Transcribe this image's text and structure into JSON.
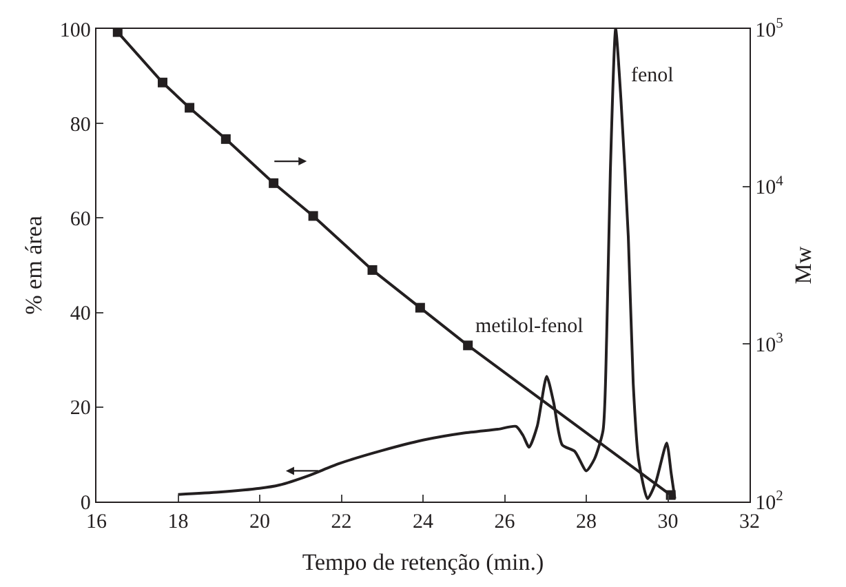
{
  "chart_data": {
    "type": "line",
    "xlabel": "Tempo de retenção (min.)",
    "ylabel": "% em área",
    "y2label": "Mw",
    "xlim": [
      16,
      32
    ],
    "xticks": [
      16,
      18,
      20,
      22,
      24,
      26,
      28,
      30,
      32
    ],
    "ylim": [
      0,
      100
    ],
    "yticks": [
      0,
      20,
      40,
      60,
      80,
      100
    ],
    "y2lim": [
      100,
      100000
    ],
    "y2ticks": [
      {
        "value": 100,
        "label": "10$^{2}$"
      },
      {
        "value": 1000,
        "label": "10$^{3}$"
      },
      {
        "value": 10000,
        "label": "10$^{4}$"
      },
      {
        "value": 100000,
        "label": "10$^{5}$"
      }
    ],
    "log": "y2",
    "series": [
      {
        "color": "#231f20",
        "marker": "none",
        "line_style": "solid",
        "x": [
          18.0,
          19.0,
          20.0,
          20.48,
          21.2,
          21.93,
          23.0,
          24.0,
          25.0,
          25.83,
          26.28,
          26.45,
          26.6,
          26.8,
          27.03,
          27.2,
          27.41,
          27.72,
          28.0,
          28.2,
          28.41,
          28.5,
          28.59,
          28.72,
          28.85,
          29.03,
          29.15,
          29.28,
          29.5,
          29.7,
          29.97,
          30.08,
          30.17
        ],
        "values": [
          1.5,
          2,
          2.8,
          3.5,
          5.5,
          8,
          10.8,
          13,
          14.5,
          15.3,
          15.9,
          14,
          11.5,
          16,
          26.5,
          21,
          12,
          10.6,
          6.5,
          9,
          15,
          35,
          70,
          100,
          85,
          56,
          25,
          9,
          0.6,
          4,
          12.4,
          6,
          0.6
        ]
      },
      {
        "color": "#231f20",
        "marker": "square",
        "line_style": "solid",
        "axis": "y2",
        "x": [
          16.52,
          17.62,
          18.28,
          19.17,
          20.34,
          21.31,
          22.76,
          23.93,
          25.1,
          30.07
        ],
        "values": [
          95500,
          45700,
          31600,
          20000,
          10500,
          6500,
          2950,
          1700,
          980,
          110
        ]
      }
    ],
    "annotations": [
      "fenol",
      "metilol-fenol"
    ]
  }
}
